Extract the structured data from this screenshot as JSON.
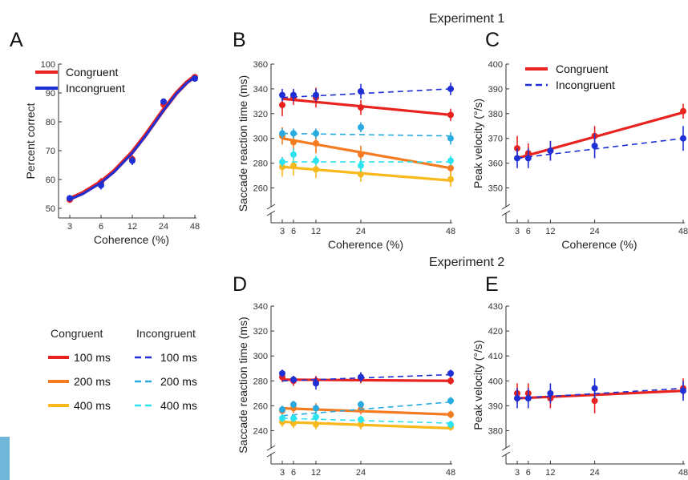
{
  "experiment_titles": [
    "Experiment 1",
    "Experiment 2"
  ],
  "colors": {
    "congruent_red": "#e8231f",
    "incongruent_blue": "#1f2fd6",
    "orange": "#f47b20",
    "light_blue": "#29abe2",
    "yellow": "#f9b81b",
    "cyan": "#2de3f0",
    "edge_tab": "#6fb6d8"
  },
  "condition_legend": {
    "col_headers": [
      "Congruent",
      "Incongruent"
    ],
    "rows": [
      {
        "congruent": "100 ms",
        "incongruent": "100 ms",
        "congruent_color": "#e8231f",
        "incongruent_color": "#1f2fd6"
      },
      {
        "congruent": "200 ms",
        "incongruent": "200 ms",
        "congruent_color": "#f47b20",
        "incongruent_color": "#29abe2"
      },
      {
        "congruent": "400 ms",
        "incongruent": "400 ms",
        "congruent_color": "#f9b81b",
        "incongruent_color": "#2de3f0"
      }
    ]
  },
  "chart_data": [
    {
      "panel": "A",
      "type": "line",
      "xlabel": "Coherence (%)",
      "ylabel": "Percent correct",
      "x_scale": "log",
      "x_ticks": [
        3,
        6,
        12,
        24,
        48
      ],
      "ylim": [
        50,
        100
      ],
      "y_ticks": [
        50,
        60,
        70,
        80,
        90,
        100
      ],
      "legend": {
        "placement": "top-left",
        "entries": [
          "Congruent",
          "Incongruent"
        ]
      },
      "series": [
        {
          "name": "Congruent",
          "style": "solid",
          "color": "#e8231f",
          "points": [
            {
              "x": 3,
              "y": 53,
              "err": 1
            },
            {
              "x": 6,
              "y": 59,
              "err": 1.5
            },
            {
              "x": 12,
              "y": 67,
              "err": 1.5
            },
            {
              "x": 24,
              "y": 86,
              "err": 1
            },
            {
              "x": 48,
              "y": 95.5,
              "err": 1
            }
          ],
          "curve": [
            [
              3,
              53.3
            ],
            [
              4,
              55.3
            ],
            [
              6,
              59.2
            ],
            [
              8,
              62.9
            ],
            [
              12,
              69.5
            ],
            [
              16,
              75.3
            ],
            [
              20,
              80.2
            ],
            [
              24,
              84.2
            ],
            [
              32,
              90
            ],
            [
              40,
              93.6
            ],
            [
              48,
              95.8
            ]
          ]
        },
        {
          "name": "Incongruent",
          "style": "solid",
          "color": "#1f2fd6",
          "points": [
            {
              "x": 3,
              "y": 53.5,
              "err": 1
            },
            {
              "x": 6,
              "y": 58,
              "err": 1.5
            },
            {
              "x": 12,
              "y": 66.5,
              "err": 1.5
            },
            {
              "x": 24,
              "y": 87,
              "err": 1
            },
            {
              "x": 48,
              "y": 95,
              "err": 1
            }
          ],
          "curve": [
            [
              3,
              53.1
            ],
            [
              4,
              55
            ],
            [
              6,
              58.9
            ],
            [
              8,
              62.6
            ],
            [
              12,
              69.2
            ],
            [
              16,
              75
            ],
            [
              20,
              79.9
            ],
            [
              24,
              84
            ],
            [
              32,
              89.8
            ],
            [
              40,
              93.4
            ],
            [
              48,
              95.5
            ]
          ]
        }
      ]
    },
    {
      "panel": "B",
      "type": "line",
      "xlabel": "Coherence (%)",
      "ylabel": "Saccade reaction time (ms)",
      "x_ticks": [
        3,
        6,
        12,
        24,
        48
      ],
      "ylim": [
        250,
        360
      ],
      "y_ticks": [
        260,
        280,
        300,
        320,
        340,
        360
      ],
      "axis_break": true,
      "series": [
        {
          "name": "Congruent 100 ms",
          "style": "solid",
          "color": "#e8231f",
          "points": [
            {
              "x": 3,
              "y": 327,
              "err": 9
            },
            {
              "x": 6,
              "y": 333,
              "err": 6
            },
            {
              "x": 12,
              "y": 333,
              "err": 8
            },
            {
              "x": 24,
              "y": 325,
              "err": 6
            },
            {
              "x": 48,
              "y": 319,
              "err": 5
            }
          ],
          "fit": [
            332,
            319
          ]
        },
        {
          "name": "Incongruent 100 ms",
          "style": "dashed",
          "color": "#1f2fd6",
          "points": [
            {
              "x": 3,
              "y": 335,
              "err": 5
            },
            {
              "x": 6,
              "y": 335,
              "err": 5
            },
            {
              "x": 12,
              "y": 335,
              "err": 5
            },
            {
              "x": 24,
              "y": 338,
              "err": 6
            },
            {
              "x": 48,
              "y": 340,
              "err": 5
            }
          ],
          "fit": [
            333,
            340
          ]
        },
        {
          "name": "Congruent 200 ms",
          "style": "solid",
          "color": "#f47b20",
          "points": [
            {
              "x": 3,
              "y": 302,
              "err": 7
            },
            {
              "x": 6,
              "y": 297,
              "err": 7
            },
            {
              "x": 12,
              "y": 296,
              "err": 8
            },
            {
              "x": 24,
              "y": 287,
              "err": 7
            },
            {
              "x": 48,
              "y": 276,
              "err": 6
            }
          ],
          "fit": [
            300,
            276
          ]
        },
        {
          "name": "Incongruent 200 ms",
          "style": "dashed",
          "color": "#29abe2",
          "points": [
            {
              "x": 3,
              "y": 304,
              "err": 4
            },
            {
              "x": 6,
              "y": 304,
              "err": 4
            },
            {
              "x": 12,
              "y": 304,
              "err": 4
            },
            {
              "x": 24,
              "y": 309,
              "err": 4
            },
            {
              "x": 48,
              "y": 300,
              "err": 5
            }
          ],
          "fit": [
            304,
            302
          ]
        },
        {
          "name": "Congruent 400 ms",
          "style": "solid",
          "color": "#f9b81b",
          "points": [
            {
              "x": 3,
              "y": 277,
              "err": 8
            },
            {
              "x": 6,
              "y": 278,
              "err": 8
            },
            {
              "x": 12,
              "y": 275,
              "err": 7
            },
            {
              "x": 24,
              "y": 271,
              "err": 6
            },
            {
              "x": 48,
              "y": 267,
              "err": 6
            }
          ],
          "fit": [
            277,
            266
          ]
        },
        {
          "name": "Incongruent 400 ms",
          "style": "dashed",
          "color": "#2de3f0",
          "points": [
            {
              "x": 3,
              "y": 281,
              "err": 4
            },
            {
              "x": 6,
              "y": 287,
              "err": 5
            },
            {
              "x": 12,
              "y": 282,
              "err": 4
            },
            {
              "x": 24,
              "y": 278,
              "err": 5
            },
            {
              "x": 48,
              "y": 282,
              "err": 4
            }
          ],
          "fit": [
            281,
            281
          ]
        }
      ]
    },
    {
      "panel": "C",
      "type": "line",
      "xlabel": "Coherence (%)",
      "ylabel": "Peak velocity (°/s)",
      "x_ticks": [
        3,
        6,
        12,
        24,
        48
      ],
      "ylim": [
        345,
        400
      ],
      "y_ticks": [
        350,
        360,
        370,
        380,
        390,
        400
      ],
      "axis_break": true,
      "legend": {
        "placement": "top-left",
        "entries": [
          "Congruent",
          "Incongruent"
        ]
      },
      "series": [
        {
          "name": "Congruent",
          "style": "solid",
          "color": "#e8231f",
          "points": [
            {
              "x": 3,
              "y": 366,
              "err": 5
            },
            {
              "x": 6,
              "y": 364,
              "err": 4
            },
            {
              "x": 12,
              "y": 365,
              "err": 4
            },
            {
              "x": 24,
              "y": 371,
              "err": 4
            },
            {
              "x": 48,
              "y": 381,
              "err": 3
            }
          ],
          "fit": [
            362,
            380.5
          ]
        },
        {
          "name": "Incongruent",
          "style": "dashed",
          "color": "#1f2fd6",
          "points": [
            {
              "x": 3,
              "y": 362,
              "err": 4
            },
            {
              "x": 6,
              "y": 362,
              "err": 4
            },
            {
              "x": 12,
              "y": 365,
              "err": 4
            },
            {
              "x": 24,
              "y": 367,
              "err": 5
            },
            {
              "x": 48,
              "y": 370,
              "err": 5
            }
          ],
          "fit": [
            362,
            370
          ]
        }
      ]
    },
    {
      "panel": "D",
      "type": "line",
      "xlabel": "Coherence (%)",
      "ylabel": "Saccade reaction time (ms)",
      "x_ticks": [
        3,
        6,
        12,
        24,
        48
      ],
      "ylim": [
        230,
        340
      ],
      "y_ticks": [
        240,
        260,
        280,
        300,
        320,
        340
      ],
      "axis_break": true,
      "series": [
        {
          "name": "Congruent 100 ms",
          "style": "solid",
          "color": "#e8231f",
          "points": [
            {
              "x": 3,
              "y": 283,
              "err": 4
            },
            {
              "x": 6,
              "y": 280,
              "err": 4
            },
            {
              "x": 12,
              "y": 280,
              "err": 4
            },
            {
              "x": 24,
              "y": 282,
              "err": 4
            },
            {
              "x": 48,
              "y": 280,
              "err": 3
            }
          ],
          "fit": [
            281,
            280
          ]
        },
        {
          "name": "Incongruent 100 ms",
          "style": "dashed",
          "color": "#1f2fd6",
          "points": [
            {
              "x": 3,
              "y": 286,
              "err": 3
            },
            {
              "x": 6,
              "y": 281,
              "err": 3
            },
            {
              "x": 12,
              "y": 278,
              "err": 5
            },
            {
              "x": 24,
              "y": 283,
              "err": 4
            },
            {
              "x": 48,
              "y": 286,
              "err": 3
            }
          ],
          "fit": [
            280,
            285
          ]
        },
        {
          "name": "Congruent 200 ms",
          "style": "solid",
          "color": "#f47b20",
          "points": [
            {
              "x": 3,
              "y": 256,
              "err": 4
            },
            {
              "x": 6,
              "y": 258,
              "err": 4
            },
            {
              "x": 12,
              "y": 258,
              "err": 4
            },
            {
              "x": 24,
              "y": 257,
              "err": 4
            },
            {
              "x": 48,
              "y": 253,
              "err": 3
            }
          ],
          "fit": [
            258,
            253
          ]
        },
        {
          "name": "Incongruent 200 ms",
          "style": "dashed",
          "color": "#29abe2",
          "points": [
            {
              "x": 3,
              "y": 257,
              "err": 3
            },
            {
              "x": 6,
              "y": 261,
              "err": 3
            },
            {
              "x": 12,
              "y": 258,
              "err": 3
            },
            {
              "x": 24,
              "y": 261,
              "err": 3
            },
            {
              "x": 48,
              "y": 264,
              "err": 3
            }
          ],
          "fit": [
            252,
            263
          ]
        },
        {
          "name": "Congruent 400 ms",
          "style": "solid",
          "color": "#f9b81b",
          "points": [
            {
              "x": 3,
              "y": 247,
              "err": 4
            },
            {
              "x": 6,
              "y": 246,
              "err": 4
            },
            {
              "x": 12,
              "y": 245,
              "err": 4
            },
            {
              "x": 24,
              "y": 245,
              "err": 4
            },
            {
              "x": 48,
              "y": 243,
              "err": 3
            }
          ],
          "fit": [
            247,
            242
          ]
        },
        {
          "name": "Incongruent 400 ms",
          "style": "dashed",
          "color": "#2de3f0",
          "points": [
            {
              "x": 3,
              "y": 250,
              "err": 3
            },
            {
              "x": 6,
              "y": 250,
              "err": 3
            },
            {
              "x": 12,
              "y": 251,
              "err": 3
            },
            {
              "x": 24,
              "y": 249,
              "err": 3
            },
            {
              "x": 48,
              "y": 245,
              "err": 3
            }
          ],
          "fit": [
            250,
            246
          ]
        }
      ]
    },
    {
      "panel": "E",
      "type": "line",
      "xlabel": "Coherence (%)",
      "ylabel": "Peak velocity (°/s)",
      "x_ticks": [
        3,
        6,
        12,
        24,
        48
      ],
      "ylim": [
        375,
        430
      ],
      "y_ticks": [
        380,
        390,
        400,
        410,
        420,
        430
      ],
      "axis_break": true,
      "series": [
        {
          "name": "Congruent",
          "style": "solid",
          "color": "#e8231f",
          "points": [
            {
              "x": 3,
              "y": 395,
              "err": 4
            },
            {
              "x": 6,
              "y": 395,
              "err": 4
            },
            {
              "x": 12,
              "y": 393,
              "err": 4
            },
            {
              "x": 24,
              "y": 392,
              "err": 5
            },
            {
              "x": 48,
              "y": 397,
              "err": 4
            }
          ],
          "fit": [
            393,
            396
          ]
        },
        {
          "name": "Incongruent",
          "style": "dashed",
          "color": "#1f2fd6",
          "points": [
            {
              "x": 3,
              "y": 393,
              "err": 4
            },
            {
              "x": 6,
              "y": 393,
              "err": 4
            },
            {
              "x": 12,
              "y": 395,
              "err": 4
            },
            {
              "x": 24,
              "y": 397,
              "err": 4
            },
            {
              "x": 48,
              "y": 396,
              "err": 4
            }
          ],
          "fit": [
            393,
            397
          ]
        }
      ]
    }
  ]
}
